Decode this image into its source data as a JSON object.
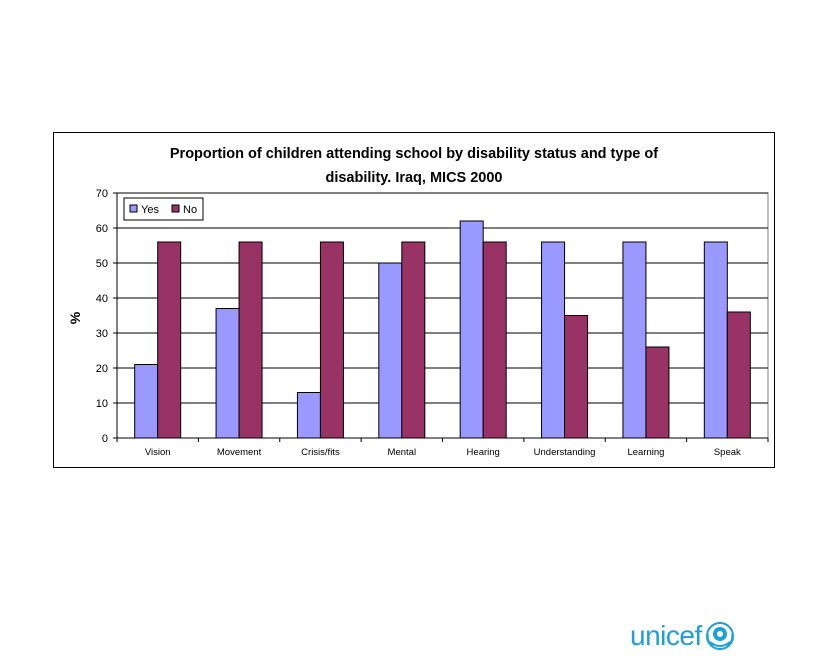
{
  "chart_data": {
    "type": "bar",
    "title_lines": [
      "Proportion of children attending school by disability status and type of",
      "disability. Iraq, MICS 2000"
    ],
    "ylabel": "%",
    "ylim": [
      0,
      70
    ],
    "yticks": [
      0,
      10,
      20,
      30,
      40,
      50,
      60,
      70
    ],
    "categories": [
      "Vision",
      "Movement",
      "Crisis/fits",
      "Mental",
      "Hearing",
      "Understanding",
      "Learning",
      "Speak"
    ],
    "series": [
      {
        "name": "Yes",
        "color": "#9999ff",
        "values": [
          21,
          37,
          13,
          50,
          62,
          56,
          56,
          56
        ]
      },
      {
        "name": "No",
        "color": "#993366",
        "values": [
          56,
          56,
          56,
          56,
          56,
          35,
          26,
          36
        ]
      }
    ],
    "grid": true,
    "legend_position": "top-left"
  },
  "logo": {
    "text": "unicef"
  }
}
